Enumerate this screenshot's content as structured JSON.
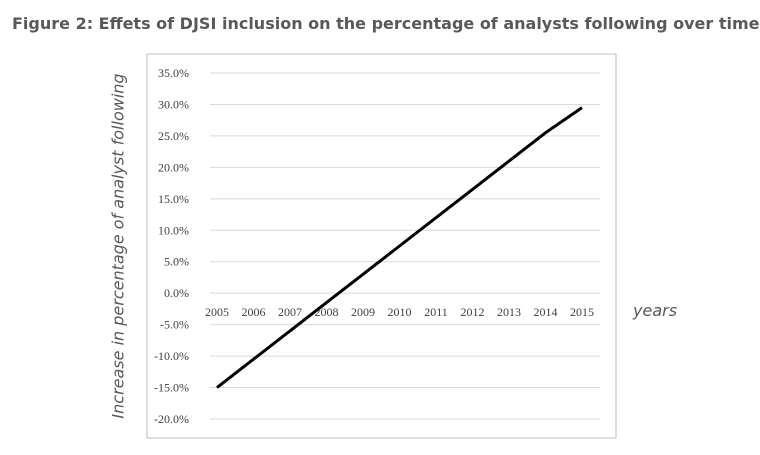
{
  "figure_title": "Figure 2:  Effets of DJSI inclusion on the percentage of analysts following over time",
  "chart_data": {
    "type": "line",
    "title": "",
    "xlabel": "years",
    "ylabel": "Increase in percentage of analyst following",
    "categories": [
      "2005",
      "2006",
      "2007",
      "2008",
      "2009",
      "2010",
      "2011",
      "2012",
      "2013",
      "2014",
      "2015"
    ],
    "series": [
      {
        "name": "Increase in percentage of analyst following",
        "color": "#000000",
        "values": [
          -15.0,
          -10.5,
          -6.0,
          -1.5,
          3.0,
          7.5,
          12.0,
          16.5,
          21.0,
          25.5,
          29.5
        ]
      }
    ],
    "yticks": [
      35,
      30,
      25,
      20,
      15,
      10,
      5,
      0,
      -5,
      -10,
      -15,
      -20
    ],
    "ytick_labels": [
      "35.0%",
      "30.0%",
      "25.0%",
      "20.0%",
      "15.0%",
      "10.0%",
      "5.0%",
      "0.0%",
      "-5.0%",
      "-10.0%",
      "-15.0%",
      "-20.0%"
    ],
    "ylim": [
      -20,
      35
    ],
    "grid": true,
    "gridline_color": "#d9d9d9",
    "border_color": "#bfbfbf"
  }
}
